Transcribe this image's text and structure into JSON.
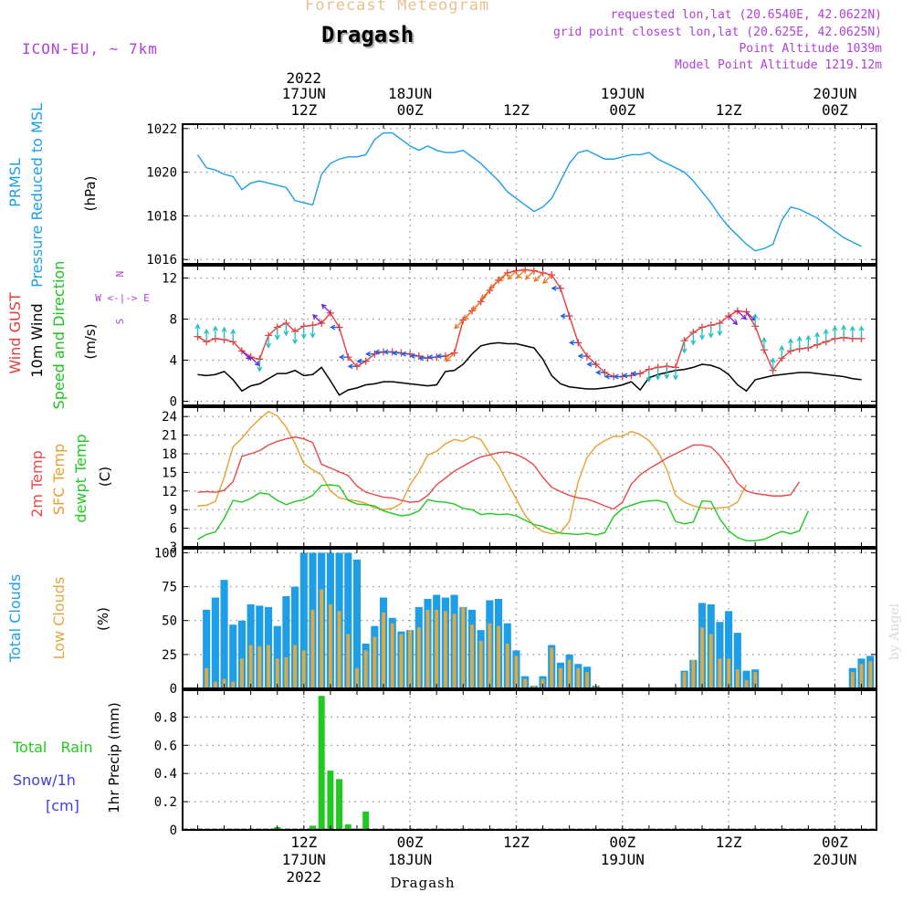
{
  "header": {
    "top_title": "Forecast Meteogram",
    "station": "Dragash",
    "model": "ICON-EU, ~ 7km",
    "requested": "requested lon,lat (20.6540E, 42.0622N)",
    "grid_point": "grid point closest lon,lat (20.625E, 42.0625N)",
    "point_alt": "Point Altitude 1039m",
    "model_alt": "Model Point Altitude 1219.12m"
  },
  "footer_station": "Dragash",
  "watermark": "by Angel",
  "time_axis": {
    "year": "2022",
    "labels": [
      {
        "t": 12,
        "top": "12Z",
        "date": "17JUN",
        "year": "2022"
      },
      {
        "t": 24,
        "top": "00Z",
        "date": "18JUN"
      },
      {
        "t": 36,
        "top": "12Z",
        "date": ""
      },
      {
        "t": 48,
        "top": "00Z",
        "date": "19JUN"
      },
      {
        "t": 60,
        "top": "12Z",
        "date": ""
      },
      {
        "t": 72,
        "top": "00Z",
        "date": "20JUN"
      }
    ]
  },
  "colors": {
    "pressure": "#1e9ee6",
    "gust": "#e83c3c",
    "wind": "#000000",
    "direction": "#20c020",
    "temp": "#e84848",
    "sfc": "#e8a030",
    "dewpt": "#20c820",
    "total_cloud": "#1e9ee6",
    "low_cloud": "#e0a840",
    "precip": "#20c820",
    "snow": "#4040e0",
    "compass": "#b040d8",
    "header_purple": "#b040d8",
    "header_tan": "#e8c090"
  },
  "chart_data": [
    {
      "type": "line",
      "panel": "pressure",
      "ylabel": [
        "PRMSL",
        "Pressure Reduced to MSL",
        "(hPa)"
      ],
      "ylim": [
        1015.8,
        1022.2
      ],
      "yticks": [
        1016,
        1018,
        1020,
        1022
      ],
      "t0": 0,
      "dt": 1,
      "series": [
        {
          "values": [
            1020.8,
            1020.2,
            1020.1,
            1019.9,
            1019.8,
            1019.2,
            1019.5,
            1019.6,
            1019.5,
            1019.4,
            1019.3,
            1018.7,
            1018.6,
            1018.5,
            1019.9,
            1020.4,
            1020.6,
            1020.7,
            1020.7,
            1020.8,
            1021.5,
            1021.8,
            1021.8,
            1021.5,
            1021.2,
            1021.0,
            1021.2,
            1021.0,
            1020.9,
            1020.9,
            1021.0,
            1020.7,
            1020.4,
            1020.0,
            1019.6,
            1019.1,
            1018.8,
            1018.5,
            1018.2,
            1018.4,
            1018.8,
            1019.6,
            1020.4,
            1020.9,
            1021.0,
            1020.8,
            1020.6,
            1020.6,
            1020.7,
            1020.8,
            1020.8,
            1020.9,
            1020.6,
            1020.4,
            1020.2,
            1020.0,
            1019.6,
            1019.1,
            1018.6,
            1018.0,
            1017.5,
            1017.1,
            1016.7,
            1016.4,
            1016.5,
            1016.7,
            1017.8,
            1018.4,
            1018.3,
            1018.1,
            1017.9,
            1017.6,
            1017.3,
            1017.0,
            1016.8,
            1016.6
          ]
        }
      ]
    },
    {
      "type": "line",
      "panel": "wind",
      "ylabel": [
        "Wind GUST",
        "10m Wind",
        "Speed and Direction",
        "(m/s)"
      ],
      "ylim": [
        -0.4,
        13.2
      ],
      "yticks": [
        0,
        4,
        8,
        12
      ],
      "compass": [
        "N",
        "W <-|-> E",
        "S"
      ],
      "t0": 0,
      "dt": 1,
      "series": [
        {
          "name": "Wind GUST",
          "values": [
            6.3,
            5.8,
            6.1,
            6.0,
            5.8,
            4.9,
            4.3,
            4.1,
            6.4,
            7.2,
            7.6,
            6.8,
            7.3,
            7.4,
            7.6,
            8.6,
            7.2,
            4.3,
            3.4,
            3.9,
            4.6,
            4.8,
            4.8,
            4.7,
            4.6,
            4.4,
            4.2,
            4.3,
            4.4,
            4.7,
            7.9,
            8.8,
            9.7,
            10.8,
            11.8,
            12.5,
            12.7,
            12.8,
            12.7,
            12.5,
            12.3,
            11.0,
            8.3,
            5.7,
            4.4,
            3.6,
            2.8,
            2.4,
            2.4,
            2.5,
            2.7,
            3.1,
            3.3,
            3.4,
            3.3,
            5.9,
            6.7,
            7.2,
            7.4,
            7.6,
            8.3,
            8.8,
            8.7,
            7.3,
            5.0,
            3.0,
            4.2,
            4.9,
            5.1,
            5.2,
            5.5,
            5.8,
            6.1,
            6.2,
            6.1,
            6.1
          ]
        },
        {
          "name": "10m Wind",
          "values": [
            2.6,
            2.5,
            2.6,
            2.9,
            2.1,
            1.0,
            1.5,
            1.7,
            2.2,
            2.7,
            2.7,
            3.0,
            2.5,
            2.6,
            3.3,
            2.0,
            0.6,
            1.1,
            1.3,
            1.6,
            1.7,
            1.9,
            1.9,
            1.8,
            1.7,
            1.6,
            1.5,
            1.6,
            2.9,
            3.0,
            3.6,
            4.6,
            5.4,
            5.6,
            5.7,
            5.6,
            5.6,
            5.4,
            5.2,
            4.1,
            2.5,
            1.7,
            1.4,
            1.3,
            1.2,
            1.2,
            1.3,
            1.4,
            1.6,
            1.9,
            1.1,
            2.3,
            2.6,
            2.8,
            3.0,
            3.1,
            3.3,
            3.6,
            3.5,
            3.2,
            2.6,
            1.6,
            1.0,
            2.1,
            2.3,
            2.5,
            2.6,
            2.7,
            2.8,
            2.8,
            2.7,
            2.6,
            2.5,
            2.4,
            2.2,
            2.1
          ]
        }
      ],
      "direction_arrows": [
        {
          "t_from": 0,
          "t_to": 4,
          "color": "#20c0c0",
          "dir": "N"
        },
        {
          "t_from": 5,
          "t_to": 6,
          "color": "#7020e0",
          "dir": "SE"
        },
        {
          "t_from": 7,
          "t_to": 13,
          "color": "#20c0c0",
          "dir": "S"
        },
        {
          "t_from": 14,
          "t_to": 15,
          "color": "#7020e0",
          "dir": "NW"
        },
        {
          "t_from": 16,
          "t_to": 28,
          "color": "#2060e0",
          "dir": "W"
        },
        {
          "t_from": 29,
          "t_to": 40,
          "color": "#e87820",
          "dir": "SW"
        },
        {
          "t_from": 41,
          "t_to": 50,
          "color": "#2060e0",
          "dir": "W"
        },
        {
          "t_from": 51,
          "t_to": 59,
          "color": "#20c0c0",
          "dir": "S"
        },
        {
          "t_from": 60,
          "t_to": 62,
          "color": "#7020e0",
          "dir": "SE"
        },
        {
          "t_from": 63,
          "t_to": 75,
          "color": "#20c0c0",
          "dir": "N"
        }
      ]
    },
    {
      "type": "line",
      "panel": "temperature",
      "ylabel": [
        "2m Temp",
        "SFC Temp",
        "dewpt Temp",
        "(C)"
      ],
      "ylim": [
        3,
        25.5
      ],
      "yticks": [
        3,
        6,
        9,
        12,
        15,
        18,
        21,
        24
      ],
      "t0": 0,
      "dt": 1,
      "series": [
        {
          "name": "2m Temp",
          "values": [
            11.8,
            11.9,
            11.8,
            12.1,
            13.5,
            17.6,
            18.0,
            18.5,
            19.4,
            20.0,
            20.4,
            20.7,
            20.4,
            19.8,
            16.3,
            15.7,
            15.1,
            14.5,
            12.8,
            11.8,
            11.4,
            11.0,
            10.9,
            10.5,
            10.2,
            10.3,
            11.3,
            13.0,
            14.1,
            15.2,
            16.0,
            16.8,
            17.5,
            17.8,
            18.2,
            18.3,
            17.9,
            17.2,
            16.2,
            14.2,
            12.6,
            11.9,
            11.3,
            10.9,
            10.7,
            10.2,
            9.6,
            9.1,
            10.2,
            13.1,
            14.6,
            15.6,
            16.4,
            17.3,
            18.0,
            18.7,
            19.4,
            19.4,
            19.1,
            17.7,
            15.7,
            13.3,
            12.0,
            11.6,
            11.4,
            11.2,
            11.2,
            11.4,
            13.5
          ]
        },
        {
          "name": "SFC Temp",
          "values": [
            9.6,
            9.7,
            10.3,
            14.2,
            19.1,
            20.5,
            22.2,
            23.6,
            24.8,
            24.1,
            22.3,
            19.7,
            16.4,
            15.4,
            14.6,
            12.0,
            10.9,
            10.6,
            10.4,
            10.0,
            9.3,
            9.0,
            9.2,
            10.0,
            13.0,
            15.1,
            17.8,
            18.4,
            19.6,
            20.3,
            20.0,
            20.8,
            20.3,
            18.0,
            16.1,
            13.3,
            10.7,
            8.1,
            6.4,
            5.5,
            5.1,
            5.3,
            7.1,
            13.5,
            17.4,
            19.2,
            20.1,
            20.8,
            20.8,
            21.6,
            21.1,
            20.1,
            18.4,
            15.5,
            11.3,
            10.2,
            9.6,
            9.3,
            9.2,
            9.3,
            9.4,
            10.2,
            13.0
          ]
        },
        {
          "name": "dewpt Temp",
          "values": [
            4.2,
            5.0,
            5.4,
            7.6,
            10.5,
            10.2,
            10.8,
            11.7,
            11.5,
            10.5,
            9.8,
            10.3,
            10.6,
            11.3,
            12.9,
            13.0,
            12.8,
            10.5,
            9.9,
            9.8,
            9.6,
            8.8,
            8.4,
            8.0,
            8.2,
            8.8,
            10.6,
            10.3,
            10.2,
            9.9,
            9.2,
            9.0,
            8.2,
            8.4,
            8.2,
            8.3,
            8.0,
            7.3,
            6.6,
            6.3,
            5.7,
            5.2,
            5.1,
            5.0,
            5.2,
            4.9,
            5.3,
            7.9,
            9.2,
            9.7,
            10.2,
            10.4,
            10.5,
            10.1,
            7.1,
            6.7,
            7.0,
            10.4,
            10.3,
            7.5,
            5.6,
            4.5,
            4.0,
            4.0,
            4.2,
            4.9,
            5.5,
            5.1,
            5.6,
            8.8
          ]
        }
      ]
    },
    {
      "type": "bar",
      "panel": "clouds",
      "ylabel": [
        "Total Clouds",
        "Low Clouds",
        "(%)"
      ],
      "ylim": [
        0,
        103
      ],
      "yticks": [
        0,
        25,
        50,
        75,
        100
      ],
      "t0": 1,
      "dt": 1,
      "series": [
        {
          "name": "Total Clouds",
          "values": [
            58,
            67,
            80,
            47,
            50,
            62,
            61,
            60,
            46,
            68,
            75,
            100,
            100,
            100,
            100,
            100,
            100,
            95,
            33,
            46,
            67,
            52,
            42,
            43,
            60,
            66,
            69,
            67,
            69,
            60,
            58,
            43,
            65,
            66,
            48,
            28,
            9,
            2,
            9,
            32,
            19,
            25,
            18,
            16,
            2,
            0,
            0,
            0,
            0,
            0,
            0,
            0,
            0,
            0,
            13,
            21,
            63,
            62,
            49,
            57,
            41,
            13,
            14,
            0,
            0,
            0,
            0,
            0,
            0,
            0,
            0,
            0,
            0,
            15,
            22,
            24
          ]
        },
        {
          "name": "Low Clouds",
          "values": [
            15,
            5,
            7,
            5,
            22,
            32,
            31,
            32,
            22,
            23,
            32,
            28,
            58,
            73,
            62,
            57,
            40,
            15,
            28,
            38,
            56,
            48,
            40,
            43,
            45,
            58,
            58,
            57,
            55,
            60,
            47,
            35,
            48,
            46,
            33,
            24,
            7,
            2,
            7,
            30,
            15,
            21,
            15,
            12,
            2,
            0,
            0,
            0,
            0,
            0,
            0,
            0,
            0,
            0,
            12,
            21,
            45,
            40,
            22,
            22,
            14,
            6,
            12,
            0,
            0,
            0,
            0,
            0,
            0,
            0,
            0,
            0,
            0,
            12,
            18,
            20
          ]
        }
      ]
    },
    {
      "type": "bar",
      "panel": "precip",
      "ylabel": [
        "1hr Precip (mm)",
        "Total Rain",
        "Snow/1h",
        "[cm]"
      ],
      "ylim": [
        0,
        0.99
      ],
      "yticks": [
        0,
        0.2,
        0.4,
        0.6,
        0.8
      ],
      "t0": 0,
      "dt": 1,
      "series": [
        {
          "name": "Total Rain",
          "values": [
            0,
            0,
            0,
            0,
            0,
            0,
            0,
            0,
            0,
            0.02,
            0,
            0,
            0,
            0.03,
            0.95,
            0.42,
            0.36,
            0.04,
            0,
            0.13,
            0,
            0,
            0,
            0,
            0,
            0,
            0,
            0,
            0,
            0,
            0,
            0,
            0,
            0,
            0,
            0,
            0,
            0,
            0,
            0,
            0,
            0,
            0,
            0,
            0,
            0,
            0,
            0,
            0,
            0,
            0,
            0,
            0,
            0,
            0,
            0,
            0,
            0,
            0,
            0,
            0,
            0,
            0,
            0,
            0,
            0,
            0,
            0,
            0,
            0,
            0,
            0,
            0,
            0,
            0,
            0,
            0
          ]
        }
      ]
    }
  ]
}
